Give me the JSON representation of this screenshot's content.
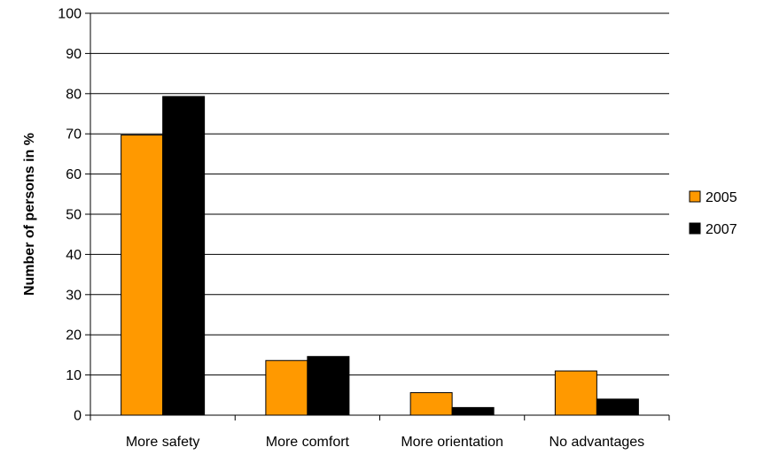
{
  "chart_data": {
    "type": "bar",
    "title": "",
    "xlabel": "",
    "ylabel": "Number of persons in %",
    "ylim": [
      0,
      100
    ],
    "yticks": [
      0,
      10,
      20,
      30,
      40,
      50,
      60,
      70,
      80,
      90,
      100
    ],
    "grid": true,
    "legend_position": "right",
    "categories": [
      "More safety",
      "More comfort",
      "More orientation",
      "No advantages"
    ],
    "series": [
      {
        "name": "2005",
        "color": "#ff9900",
        "values": [
          69.7,
          13.6,
          5.6,
          11.0
        ]
      },
      {
        "name": "2007",
        "color": "#000000",
        "values": [
          79.3,
          14.6,
          1.9,
          4.0
        ]
      }
    ]
  }
}
